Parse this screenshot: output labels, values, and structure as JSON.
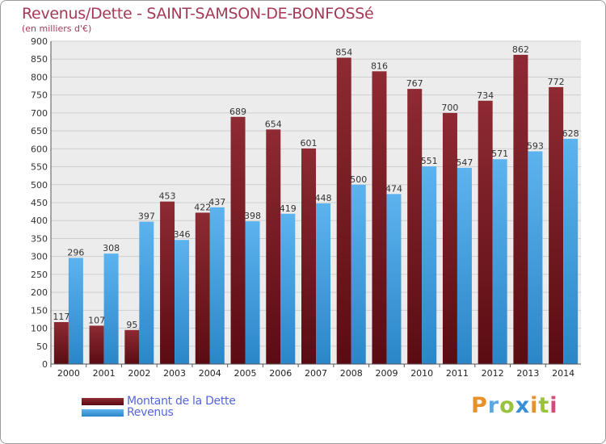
{
  "title": "Revenus/Dette - SAINT-SAMSON-DE-BONFOSSé",
  "subtitle": "(en milliers d'€)",
  "colors": {
    "dette": "#7a1f27",
    "revenus": "#4aa6e6",
    "grid": "#cfcfcf",
    "plot_bg": "#ececec",
    "title": "#a53a55"
  },
  "legend": {
    "dette_label": "Montant de la Dette",
    "revenus_label": "Revenus"
  },
  "logo": {
    "text": "Proxiti",
    "name": "proxiti-logo"
  },
  "chart_data": {
    "type": "bar",
    "title": "Revenus/Dette - SAINT-SAMSON-DE-BONFOSSé",
    "subtitle": "(en milliers d'€)",
    "xlabel": "",
    "ylabel": "",
    "categories": [
      "2000",
      "2001",
      "2002",
      "2003",
      "2004",
      "2005",
      "2006",
      "2007",
      "2008",
      "2009",
      "2010",
      "2011",
      "2012",
      "2013",
      "2014"
    ],
    "series": [
      {
        "name": "Montant de la Dette",
        "color": "#7a1f27",
        "values": [
          117,
          107,
          95,
          453,
          422,
          689,
          654,
          601,
          854,
          816,
          767,
          700,
          734,
          862,
          772
        ]
      },
      {
        "name": "Revenus",
        "color": "#4aa6e6",
        "values": [
          296,
          308,
          397,
          346,
          437,
          398,
          419,
          448,
          500,
          474,
          551,
          547,
          571,
          593,
          628
        ]
      }
    ],
    "ylim": [
      0,
      900
    ],
    "yticks": [
      0,
      50,
      100,
      150,
      200,
      250,
      300,
      350,
      400,
      450,
      500,
      550,
      600,
      650,
      700,
      750,
      800,
      850,
      900
    ],
    "grid": true,
    "legend_position": "bottom-left"
  }
}
